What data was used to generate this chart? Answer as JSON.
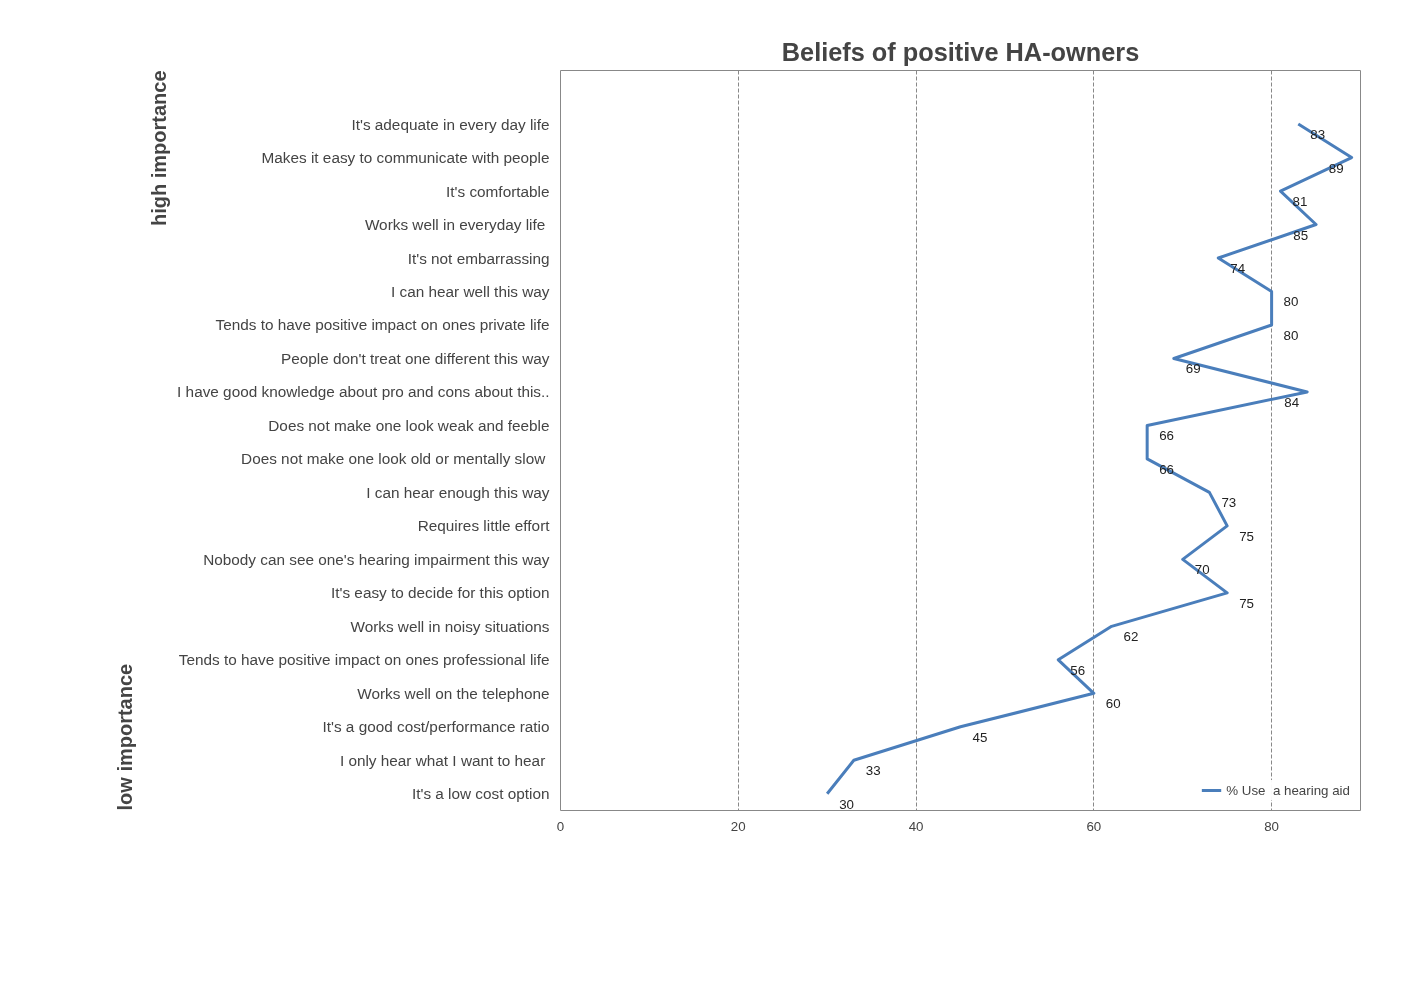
{
  "chart_data": {
    "type": "line",
    "orientation": "horizontal",
    "title": "Beliefs of positive HA-owners",
    "categories": [
      "It's adequate in every day life",
      "Makes it easy to communicate with people",
      "It's comfortable",
      "Works well in  everyday life",
      "It's not embarrassing",
      "I can hear well this way",
      "Tends to have positive impact on ones private life",
      "People don't treat one different this way",
      "I have good knowledge about pro and cons about this..",
      "Does not make one look weak and feeble",
      "Does not make one  look old or mentally slow",
      "I can hear enough this way",
      "Requires little effort",
      "Nobody can see one's hearing impairment this way",
      "It's easy to decide for this option",
      "Works well in noisy situations",
      "Tends to have positive impact on ones professional life",
      "Works well on the telephone",
      "It's a good cost/performance ratio",
      "I only hear what I  want to hear",
      "It's a low cost option"
    ],
    "series": [
      {
        "name": "% Use  a hearing aid",
        "color": "#4a7ebb",
        "values": [
          83,
          89,
          81,
          85,
          74,
          80,
          80,
          69,
          84,
          66,
          66,
          73,
          75,
          70,
          75,
          62,
          56,
          60,
          45,
          33,
          30
        ]
      }
    ],
    "xlim": [
      0,
      90
    ],
    "xticks": [
      0,
      20,
      40,
      60,
      80
    ],
    "grid": "x",
    "legend": "bottom right",
    "data_labels": true,
    "marker": "none",
    "line_style": "solid",
    "annotations": [
      "high importance",
      "low importance"
    ]
  }
}
